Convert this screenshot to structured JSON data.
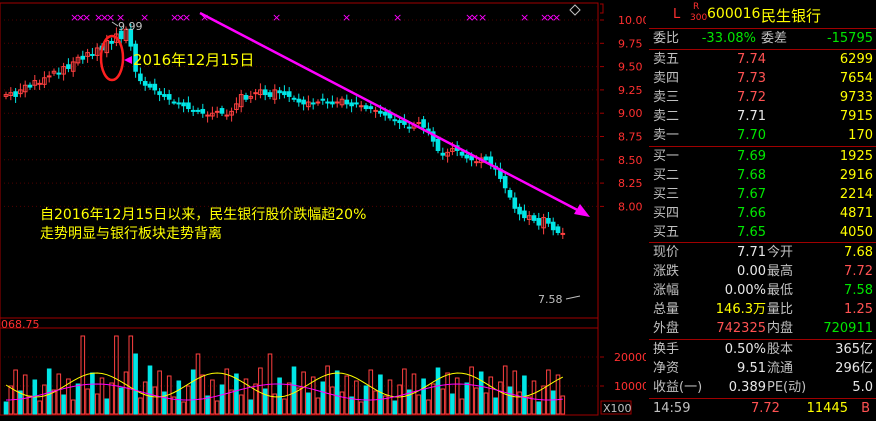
{
  "colors": {
    "up": "#ff4040",
    "down": "#00e6e6",
    "trend": "#ff00ff",
    "annot": "#ffff00",
    "grid": "#a00000"
  },
  "chart": {
    "top_marker": "9.99",
    "bottom_marker": "7.58",
    "date_label": "2016年12月15日",
    "note_line1": "自2016年12月15日以来，民生银行股价跌幅超20%",
    "note_line2": "走势明显与银行板块走势背离",
    "volume_header": "068.75",
    "price_ticks": [
      "10.00",
      "9.75",
      "9.50",
      "9.25",
      "9.00",
      "8.75",
      "8.50",
      "8.25",
      "8.00"
    ],
    "volume_ticks": [
      "20000",
      "10000"
    ],
    "volume_unit": "X100"
  },
  "quote": {
    "flag_l": "L",
    "flag_r": "R",
    "flag_num": "300",
    "code": "600016",
    "name": "民生银行",
    "weibi_label": "委比",
    "weibi_value": "-33.08%",
    "weicha_label": "委差",
    "weicha_value": "-15795",
    "asks": [
      {
        "label": "卖五",
        "price": "7.74",
        "vol": "6299"
      },
      {
        "label": "卖四",
        "price": "7.73",
        "vol": "7654"
      },
      {
        "label": "卖三",
        "price": "7.72",
        "vol": "9733"
      },
      {
        "label": "卖二",
        "price": "7.71",
        "vol": "7915"
      },
      {
        "label": "卖一",
        "price": "7.70",
        "vol": "170"
      }
    ],
    "bids": [
      {
        "label": "买一",
        "price": "7.69",
        "vol": "1925"
      },
      {
        "label": "买二",
        "price": "7.68",
        "vol": "2916"
      },
      {
        "label": "买三",
        "price": "7.67",
        "vol": "2214"
      },
      {
        "label": "买四",
        "price": "7.66",
        "vol": "4871"
      },
      {
        "label": "买五",
        "price": "7.65",
        "vol": "4050"
      }
    ],
    "stats": [
      {
        "l1": "现价",
        "v1": "7.71",
        "l2": "今开",
        "v2": "7.68"
      },
      {
        "l1": "涨跌",
        "v1": "0.00",
        "l2": "最高",
        "v2": "7.72"
      },
      {
        "l1": "涨幅",
        "v1": "0.00%",
        "l2": "最低",
        "v2": "7.58"
      },
      {
        "l1": "总量",
        "v1": "146.3万",
        "l2": "量比",
        "v2": "1.25"
      },
      {
        "l1": "外盘",
        "v1": "742325",
        "l2": "内盘",
        "v2": "720911"
      }
    ],
    "fund": [
      {
        "l1": "换手",
        "v1": "0.50%",
        "l2": "股本",
        "v2": "365亿"
      },
      {
        "l1": "净资",
        "v1": "9.51",
        "l2": "流通",
        "v2": "296亿"
      },
      {
        "l1": "收益(一)",
        "v1": "0.389",
        "l2": "PE(动)",
        "v2": "5.0"
      }
    ],
    "tick": {
      "time": "14:59",
      "price": "7.72",
      "vol": "11445",
      "side": "B"
    }
  }
}
